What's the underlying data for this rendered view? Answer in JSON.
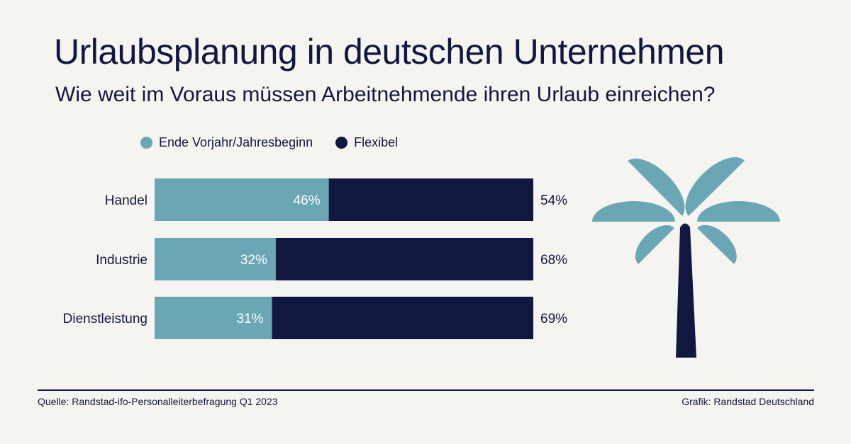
{
  "title": "Urlaubsplanung in deutschen Unternehmen",
  "subtitle": "Wie weit im Voraus müssen Arbeitnehmende ihren Urlaub einreichen?",
  "footer": {
    "source": "Quelle: Randstad-ifo-Personalleiterbefragung Q1 2023",
    "credit": "Grafik: Randstad Deutschland"
  },
  "colors": {
    "teal": "#6aa6b4",
    "navy": "#111840",
    "background": "#f6f4f0"
  },
  "icon": "palm-tree-icon",
  "chart_data": {
    "type": "bar",
    "orientation": "horizontal",
    "stacked": true,
    "categories": [
      "Handel",
      "Industrie",
      "Dienstleistung"
    ],
    "series": [
      {
        "name": "Ende Vorjahr/Jahresbeginn",
        "values": [
          46,
          32,
          31
        ],
        "labels": [
          "46%",
          "32%",
          "31%"
        ],
        "color": "#6aa6b4"
      },
      {
        "name": "Flexibel",
        "values": [
          54,
          68,
          69
        ],
        "labels": [
          "54%",
          "68%",
          "69%"
        ],
        "color": "#111840"
      }
    ],
    "xlim": [
      0,
      100
    ],
    "grid": false,
    "legend": "top"
  }
}
